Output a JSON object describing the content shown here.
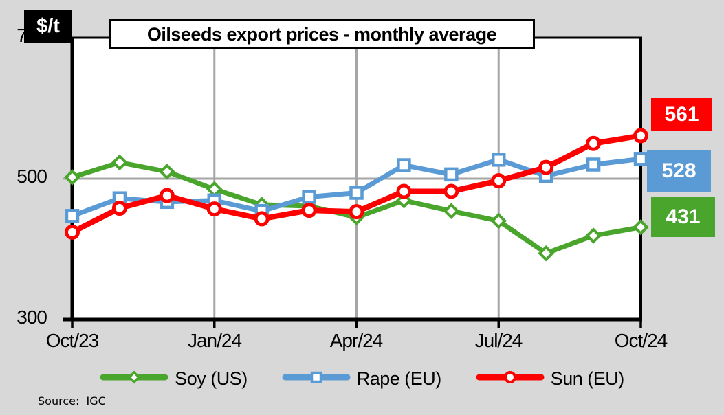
{
  "y_axis": {
    "unit_label": "$/t",
    "tick_labels": [
      "300",
      "500",
      "700"
    ]
  },
  "source_note": "Source:  IGC",
  "chart_data": {
    "type": "line",
    "title": "Oilseeds export prices - monthly average",
    "ylabel": "$/t",
    "x": [
      "Oct/23",
      "Nov/23",
      "Dec/23",
      "Jan/24",
      "Feb/24",
      "Mar/24",
      "Apr/24",
      "May/24",
      "Jun/24",
      "Jul/24",
      "Aug/24",
      "Sep/24",
      "Oct/24"
    ],
    "x_tick_labels": [
      "Oct/23",
      "Jan/24",
      "Apr/24",
      "Jul/24",
      "Oct/24"
    ],
    "x_tick_indices": [
      0,
      3,
      6,
      9,
      12
    ],
    "ylim": [
      300,
      700
    ],
    "yticks": [
      300,
      500,
      700
    ],
    "grid": {
      "h_lines": [
        500
      ],
      "v_line_indices": [
        3,
        6,
        9
      ]
    },
    "legend_position": "bottom",
    "series": [
      {
        "name": "Soy (US)",
        "color": "#4aa52d",
        "marker": "diamond",
        "end_label": "431",
        "values": [
          502,
          523,
          510,
          485,
          463,
          461,
          445,
          469,
          454,
          440,
          394,
          419,
          431
        ]
      },
      {
        "name": "Rape (EU)",
        "color": "#5b9bd5",
        "marker": "square",
        "end_label": "528",
        "values": [
          447,
          472,
          467,
          469,
          454,
          474,
          480,
          519,
          506,
          527,
          504,
          520,
          528
        ]
      },
      {
        "name": "Sun (EU)",
        "color": "#ff0000",
        "marker": "circle",
        "end_label": "561",
        "values": [
          424,
          458,
          476,
          457,
          443,
          455,
          453,
          482,
          482,
          497,
          516,
          550,
          561
        ]
      }
    ]
  }
}
